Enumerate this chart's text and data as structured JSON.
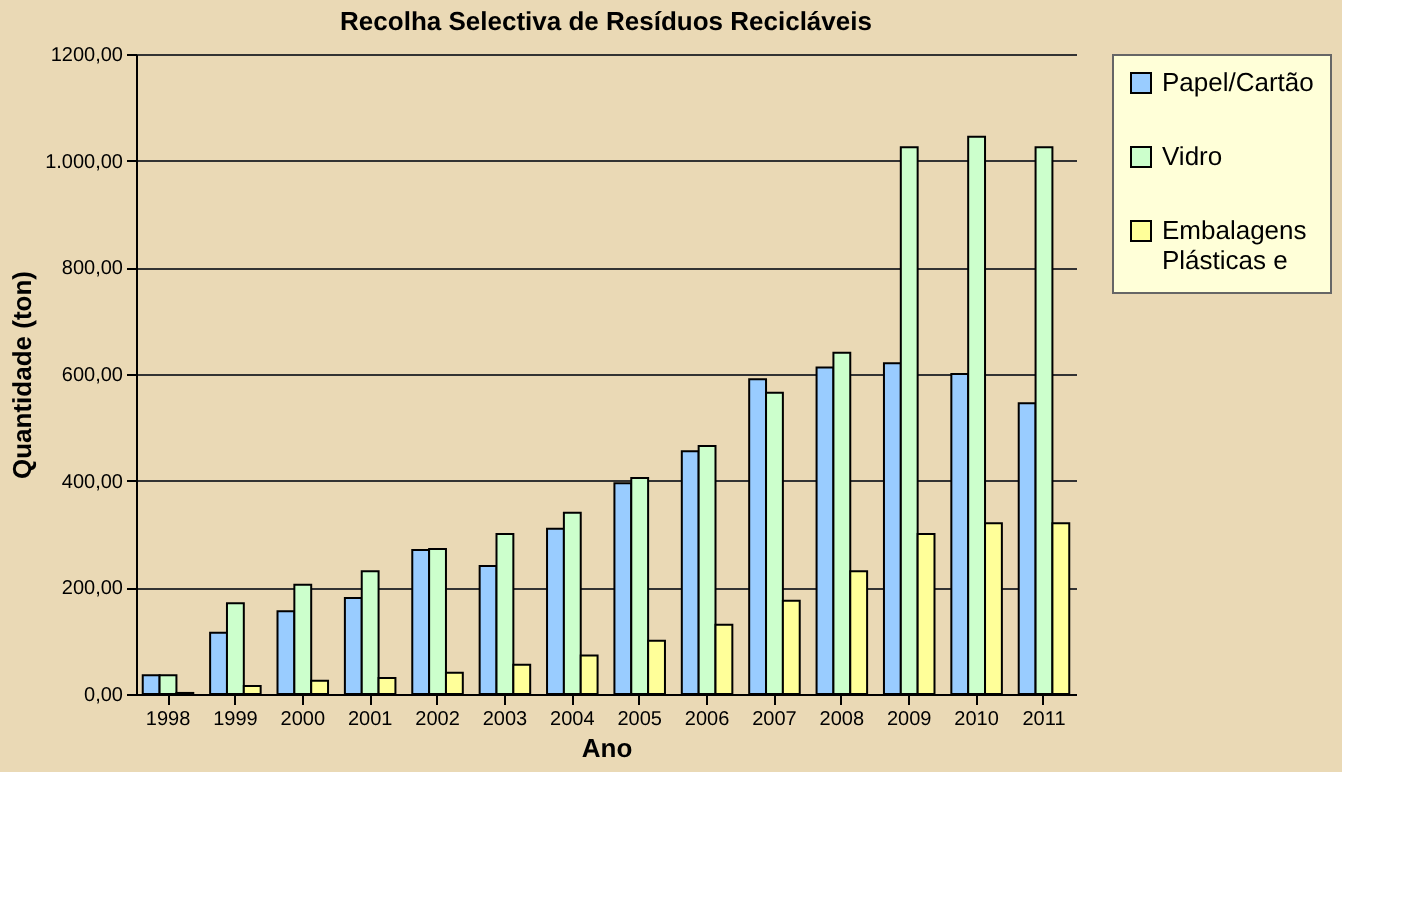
{
  "chart_data": {
    "type": "bar",
    "title": "Recolha Selectiva de Resíduos Recicláveis",
    "xlabel": "Ano",
    "ylabel": "Quantidade (ton)",
    "categories": [
      "1998",
      "1999",
      "2000",
      "2001",
      "2002",
      "2003",
      "2004",
      "2005",
      "2006",
      "2007",
      "2008",
      "2009",
      "2010",
      "2011"
    ],
    "series": [
      {
        "name": "Papel/Cartão",
        "color": "#99ccff",
        "values": [
          35,
          115,
          155,
          180,
          270,
          240,
          310,
          395,
          455,
          590,
          612,
          620,
          600,
          545
        ]
      },
      {
        "name": "Vidro",
        "color": "#ccffcc",
        "values": [
          35,
          170,
          205,
          230,
          272,
          300,
          340,
          405,
          465,
          565,
          640,
          1025,
          1045,
          1025
        ]
      },
      {
        "name": "Embalagens Plásticas e",
        "color": "#ffff99",
        "values": [
          2,
          15,
          25,
          30,
          40,
          55,
          72,
          100,
          130,
          175,
          230,
          300,
          320,
          320
        ]
      }
    ],
    "ylim": [
      0,
      1200
    ],
    "yticks": [
      {
        "value": 0,
        "label": "0,00"
      },
      {
        "value": 200,
        "label": "200,00"
      },
      {
        "value": 400,
        "label": "400,00"
      },
      {
        "value": 600,
        "label": "600,00"
      },
      {
        "value": 800,
        "label": "800,00"
      },
      {
        "value": 1000,
        "label": "1.000,00"
      },
      {
        "value": 1200,
        "label": "1200,00"
      }
    ],
    "grid": "y",
    "legend": "top right"
  }
}
